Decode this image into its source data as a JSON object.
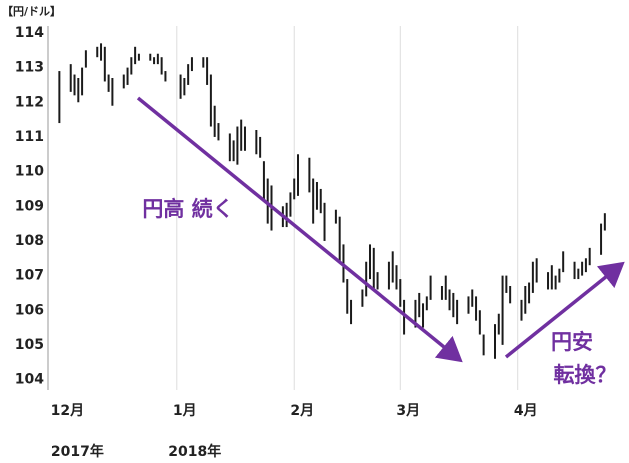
{
  "chart_data": {
    "type": "range",
    "ylabel": "【円/ドル】",
    "x": [
      0,
      3,
      4,
      5,
      6,
      7,
      10,
      11,
      12,
      13,
      14,
      17,
      18,
      19,
      20,
      21,
      24,
      25,
      26,
      27,
      28,
      32,
      33,
      34,
      35,
      38,
      39,
      40,
      41,
      42,
      45,
      46,
      47,
      48,
      49,
      52,
      53,
      54,
      55,
      56,
      59,
      60,
      61,
      62,
      63,
      66,
      67,
      68,
      69,
      70,
      73,
      74,
      75,
      76,
      77,
      80,
      81,
      82,
      83,
      84,
      87,
      88,
      89,
      90,
      91,
      94,
      95,
      96,
      97,
      98,
      101,
      102,
      103,
      104,
      105,
      108,
      109,
      110,
      111,
      112,
      115,
      116,
      117,
      118,
      119,
      122,
      123,
      124,
      125,
      126,
      129,
      130,
      131,
      132,
      133,
      136,
      137,
      138,
      139,
      140,
      143,
      144
    ],
    "series": [
      {
        "name": "high",
        "color": "#1a1a1a",
        "values": [
          112.9,
          113.1,
          112.8,
          112.7,
          113.0,
          113.5,
          113.6,
          113.7,
          113.6,
          112.8,
          112.7,
          112.8,
          113.0,
          113.3,
          113.6,
          113.4,
          113.4,
          113.3,
          113.4,
          113.3,
          112.9,
          112.8,
          112.7,
          113.1,
          113.3,
          113.3,
          113.3,
          112.8,
          111.9,
          111.4,
          111.1,
          110.9,
          111.3,
          111.5,
          111.3,
          111.2,
          111.0,
          110.3,
          109.8,
          109.6,
          109.0,
          109.1,
          109.4,
          109.8,
          110.5,
          110.4,
          109.8,
          109.7,
          109.5,
          109.1,
          108.9,
          108.7,
          107.9,
          106.9,
          106.3,
          106.6,
          107.4,
          107.9,
          107.8,
          107.1,
          107.4,
          107.7,
          107.3,
          106.9,
          106.3,
          106.3,
          106.5,
          106.2,
          106.4,
          107.0,
          106.7,
          107.0,
          106.6,
          106.5,
          106.3,
          106.4,
          106.6,
          106.4,
          106.0,
          105.3,
          105.6,
          105.9,
          107.0,
          107.0,
          106.7,
          106.3,
          106.7,
          106.8,
          107.4,
          107.5,
          107.1,
          107.3,
          107.0,
          107.2,
          107.7,
          107.4,
          107.2,
          107.4,
          107.5,
          107.8,
          108.5,
          108.8
        ]
      },
      {
        "name": "low",
        "color": "#1a1a1a",
        "values": [
          111.4,
          112.3,
          112.2,
          112.0,
          112.2,
          113.0,
          113.3,
          113.2,
          112.6,
          112.3,
          111.9,
          112.4,
          112.5,
          112.8,
          113.1,
          113.2,
          113.2,
          113.1,
          113.1,
          112.8,
          112.6,
          112.1,
          112.2,
          112.5,
          112.9,
          113.0,
          112.5,
          111.3,
          111.0,
          110.9,
          110.3,
          110.3,
          110.2,
          110.6,
          110.6,
          110.5,
          110.4,
          109.2,
          108.5,
          108.3,
          108.4,
          108.4,
          108.7,
          109.2,
          109.3,
          109.4,
          108.5,
          108.9,
          108.8,
          108.0,
          108.5,
          107.4,
          106.8,
          105.9,
          105.6,
          106.1,
          106.4,
          106.9,
          106.6,
          106.6,
          106.6,
          106.8,
          106.6,
          106.1,
          105.3,
          105.5,
          105.8,
          105.5,
          106.0,
          106.3,
          106.3,
          106.3,
          106.0,
          105.8,
          105.6,
          105.9,
          106.1,
          105.7,
          105.3,
          104.7,
          104.6,
          105.3,
          105.0,
          106.5,
          106.2,
          105.7,
          105.9,
          106.2,
          106.5,
          106.8,
          106.6,
          106.6,
          106.6,
          106.8,
          107.1,
          106.9,
          106.9,
          107.0,
          107.1,
          107.3,
          107.6,
          108.3
        ]
      }
    ],
    "xlim": [
      -3,
      148
    ],
    "xticks": [
      {
        "value": 0,
        "label": "12月",
        "year": "2017年"
      },
      {
        "value": 31,
        "label": "1月",
        "year": "2018年"
      },
      {
        "value": 62,
        "label": "2月"
      },
      {
        "value": 90,
        "label": "3月"
      },
      {
        "value": 121,
        "label": "4月"
      }
    ],
    "ylim": [
      103.7,
      114.2
    ],
    "yticks": [
      104,
      105,
      106,
      107,
      108,
      109,
      110,
      111,
      112,
      113,
      114
    ],
    "grid": "x",
    "annotations": [
      {
        "text": "円高 続く",
        "color": "#7030a0"
      },
      {
        "text": "円安",
        "color": "#7030a0"
      },
      {
        "text": "転換？",
        "color": "#7030a0"
      }
    ]
  }
}
